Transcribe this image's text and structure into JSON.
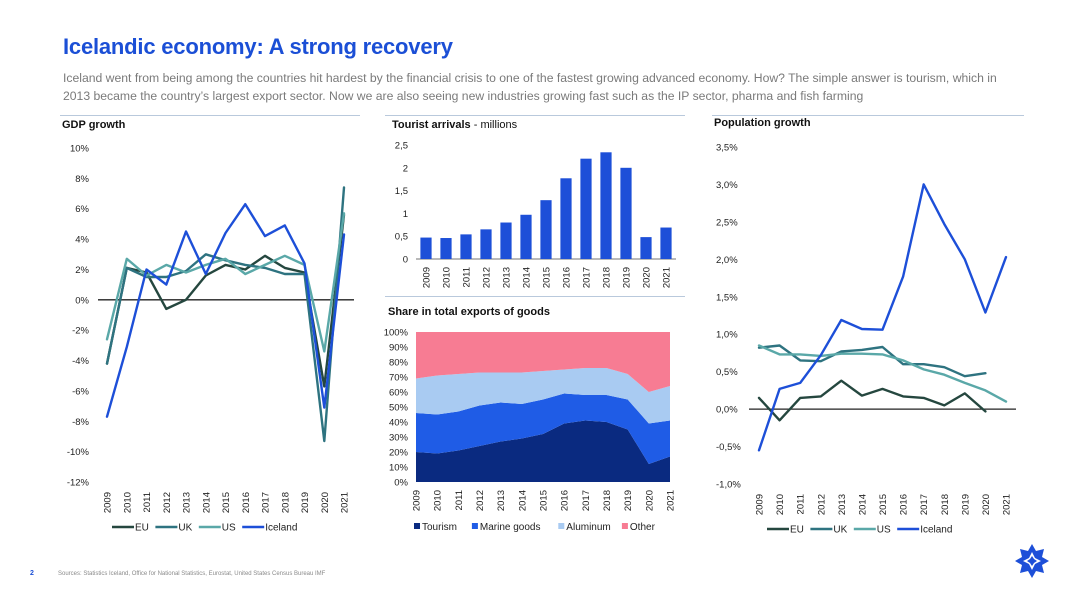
{
  "header": {
    "title": "Icelandic economy: A strong recovery",
    "subtitle": "Iceland went from being among the countries hit hardest by the financial crisis to one of the fastest growing advanced economy. How? The simple answer is tourism, which in 2013 became the country’s largest export sector. Now we are also seeing new industries growing fast such as the IP sector, pharma and fish farming"
  },
  "footer": {
    "page_number": "2",
    "sources": "Sources: Statistics Iceland, Office for National Statistics, Eurostat, United States Census Bureau IMF"
  },
  "logo_icon": "star-logo-icon",
  "colors": {
    "EU": "#25473f",
    "UK": "#2e7380",
    "US": "#5aa8a8",
    "Iceland": "#1d4fd8",
    "Tourism": "#0a2a80",
    "Marine goods": "#1f5ce6",
    "Aluminum": "#a9cbf2",
    "Other": "#f77c93"
  },
  "chart_data": [
    {
      "id": "gdp",
      "type": "line",
      "title": "GDP growth",
      "x": [
        "2009",
        "2010",
        "2011",
        "2012",
        "2013",
        "2014",
        "2015",
        "2016",
        "2017",
        "2018",
        "2019",
        "2020",
        "2021"
      ],
      "ylim": [
        -12,
        10
      ],
      "yticks": [
        10,
        8,
        6,
        4,
        2,
        0,
        -2,
        -4,
        -6,
        -8,
        -10,
        -12
      ],
      "ytick_labels": [
        "10%",
        "8%",
        "6%",
        "4%",
        "2%",
        "0%",
        "-2%",
        "-4%",
        "-6%",
        "-8%",
        "-10%",
        "-12%"
      ],
      "legend_position": "bottom",
      "series": [
        {
          "name": "EU",
          "color": "#25473f",
          "values": [
            -4.2,
            2.1,
            1.8,
            -0.6,
            0.0,
            1.6,
            2.3,
            2.0,
            2.9,
            2.1,
            1.8,
            -5.7,
            5.6
          ]
        },
        {
          "name": "UK",
          "color": "#2e7380",
          "values": [
            -4.2,
            2.1,
            1.5,
            1.5,
            1.9,
            3.0,
            2.6,
            2.3,
            2.1,
            1.7,
            1.7,
            -9.3,
            7.4
          ]
        },
        {
          "name": "US",
          "color": "#5aa8a8",
          "values": [
            -2.6,
            2.7,
            1.6,
            2.3,
            1.8,
            2.3,
            2.7,
            1.7,
            2.3,
            2.9,
            2.3,
            -3.4,
            5.7
          ]
        },
        {
          "name": "Iceland",
          "color": "#1d4fd8",
          "values": [
            -7.7,
            -3.1,
            2.0,
            1.0,
            4.5,
            1.7,
            4.4,
            6.3,
            4.2,
            4.9,
            2.4,
            -7.1,
            4.3
          ]
        }
      ]
    },
    {
      "id": "tourists",
      "type": "bar",
      "title": "Tourist arrivals",
      "title_suffix": " - millions",
      "categories": [
        "2009",
        "2010",
        "2011",
        "2012",
        "2013",
        "2014",
        "2015",
        "2016",
        "2017",
        "2018",
        "2019",
        "2020",
        "2021"
      ],
      "values": [
        0.47,
        0.46,
        0.54,
        0.65,
        0.8,
        0.97,
        1.29,
        1.77,
        2.2,
        2.34,
        2.0,
        0.48,
        0.69
      ],
      "ylim": [
        0,
        2.5
      ],
      "yticks": [
        0,
        0.5,
        1,
        1.5,
        2,
        2.5
      ],
      "ytick_labels": [
        "0",
        "0,5",
        "1",
        "1,5",
        "2",
        "2,5"
      ],
      "color": "#1d4fd8"
    },
    {
      "id": "exports",
      "type": "area",
      "stacked": true,
      "title": "Share in total exports of goods",
      "x": [
        "2009",
        "2010",
        "2011",
        "2012",
        "2013",
        "2014",
        "2015",
        "2016",
        "2017",
        "2018",
        "2019",
        "2020",
        "2021"
      ],
      "ylim": [
        0,
        100
      ],
      "yticks": [
        0,
        10,
        20,
        30,
        40,
        50,
        60,
        70,
        80,
        90,
        100
      ],
      "ytick_labels": [
        "0%",
        "10%",
        "20%",
        "30%",
        "40%",
        "50%",
        "60%",
        "70%",
        "80%",
        "90%",
        "100%"
      ],
      "legend_position": "bottom",
      "series": [
        {
          "name": "Tourism",
          "color": "#0a2a80",
          "values": [
            20,
            19,
            21,
            24,
            27,
            29,
            32,
            39,
            41,
            40,
            35,
            12,
            17
          ]
        },
        {
          "name": "Marine goods",
          "color": "#1f5ce6",
          "values": [
            26,
            26,
            26,
            27,
            26,
            23,
            23,
            20,
            17,
            18,
            20,
            27,
            24
          ]
        },
        {
          "name": "Aluminum",
          "color": "#a9cbf2",
          "values": [
            23,
            26,
            25,
            22,
            20,
            21,
            19,
            16,
            18,
            18,
            17,
            21,
            23
          ]
        },
        {
          "name": "Other",
          "color": "#f77c93",
          "values": [
            31,
            29,
            28,
            27,
            27,
            27,
            26,
            25,
            24,
            24,
            28,
            40,
            36
          ]
        }
      ]
    },
    {
      "id": "population",
      "type": "line",
      "title": "Population growth",
      "x": [
        "2009",
        "2010",
        "2011",
        "2012",
        "2013",
        "2014",
        "2015",
        "2016",
        "2017",
        "2018",
        "2019",
        "2020",
        "2021"
      ],
      "ylim": [
        -1.0,
        3.5
      ],
      "yticks": [
        3.5,
        3.0,
        2.5,
        2.0,
        1.5,
        1.0,
        0.5,
        0.0,
        -0.5,
        -1.0
      ],
      "ytick_labels": [
        "3,5%",
        "3,0%",
        "2,5%",
        "2,0%",
        "1,5%",
        "1,0%",
        "0,5%",
        "0,0%",
        "-0,5%",
        "-1,0%"
      ],
      "legend_position": "bottom",
      "series": [
        {
          "name": "EU",
          "color": "#25473f",
          "values": [
            0.15,
            -0.15,
            0.15,
            0.17,
            0.38,
            0.18,
            0.27,
            0.17,
            0.15,
            0.05,
            0.21,
            -0.03,
            null
          ]
        },
        {
          "name": "UK",
          "color": "#2e7380",
          "values": [
            0.82,
            0.85,
            0.65,
            0.64,
            0.77,
            0.79,
            0.83,
            0.6,
            0.6,
            0.56,
            0.44,
            0.48,
            null
          ]
        },
        {
          "name": "US",
          "color": "#5aa8a8",
          "values": [
            0.85,
            0.73,
            0.73,
            0.71,
            0.74,
            0.74,
            0.73,
            0.65,
            0.53,
            0.46,
            0.35,
            0.25,
            0.1
          ]
        },
        {
          "name": "Iceland",
          "color": "#1d4fd8",
          "values": [
            -0.55,
            0.27,
            0.35,
            0.72,
            1.19,
            1.07,
            1.06,
            1.77,
            3.0,
            2.47,
            2.0,
            1.29,
            2.03
          ]
        }
      ]
    }
  ]
}
